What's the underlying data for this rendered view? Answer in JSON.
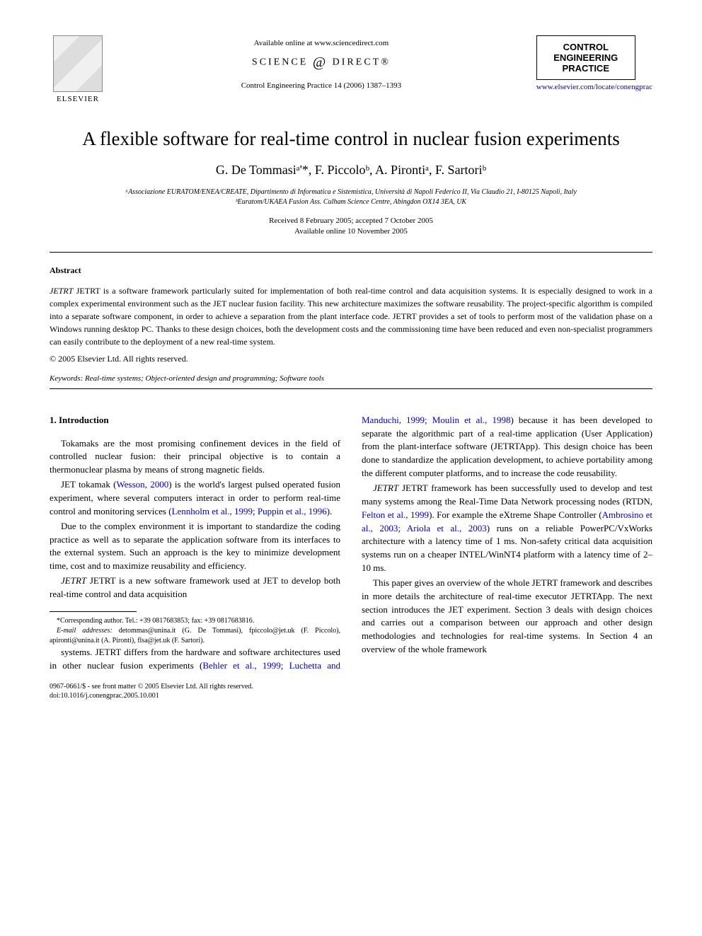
{
  "header": {
    "available_text": "Available online at www.sciencedirect.com",
    "sciencedirect": "SCIENCE",
    "sciencedirect2": "DIRECT",
    "elsevier": "ELSEVIER",
    "journal_ref": "Control Engineering Practice 14 (2006) 1387–1393",
    "journal_box_line1": "CONTROL ENGINEERING",
    "journal_box_line2": "PRACTICE",
    "journal_link": "www.elsevier.com/locate/conengprac"
  },
  "title": "A flexible software for real-time control in nuclear fusion experiments",
  "authors": "G. De Tommasiᵃ'*, F. Piccoloᵇ, A. Pirontiᵃ, F. Sartoriᵇ",
  "affiliations": {
    "a": "ᵃAssociazione EURATOM/ENEA/CREATE, Dipartimento di Informatica e Sistemistica, Università di Napoli Federico II, Via Claudio 21, I-80125 Napoli, Italy",
    "b": "ᵇEuratom/UKAEA Fusion Ass. Culham Science Centre, Abingdon OX14 3EA, UK"
  },
  "dates": {
    "received": "Received 8 February 2005; accepted 7 October 2005",
    "online": "Available online 10 November 2005"
  },
  "abstract": {
    "heading": "Abstract",
    "text": "JETRT is a software framework particularly suited for implementation of both real-time control and data acquisition systems. It is especially designed to work in a complex experimental environment such as the JET nuclear fusion facility. This new architecture maximizes the software reusability. The project-specific algorithm is compiled into a separate software component, in order to achieve a separation from the plant interface code. JETRT provides a set of tools to perform most of the validation phase on a Windows running desktop PC. Thanks to these design choices, both the development costs and the commissioning time have been reduced and even non-specialist programmers can easily contribute to the deployment of a new real-time system.",
    "copyright": "© 2005 Elsevier Ltd. All rights reserved."
  },
  "keywords": "Keywords: Real-time systems; Object-oriented design and programming; Software tools",
  "section1": {
    "heading": "1. Introduction",
    "p1": "Tokamaks are the most promising confinement devices in the field of controlled nuclear fusion: their principal objective is to contain a thermonuclear plasma by means of strong magnetic fields.",
    "p2a": "JET tokamak (",
    "p2_ref1": "Wesson, 2000",
    "p2b": ") is the world's largest pulsed operated fusion experiment, where several computers interact in order to perform real-time control and monitoring services (",
    "p2_ref2": "Lennholm et al., 1999; Puppin et al., 1996",
    "p2c": ").",
    "p3": "Due to the complex environment it is important to standardize the coding practice as well as to separate the application software from its interfaces to the external system. Such an approach is the key to minimize development time, cost and to maximize reusability and efficiency.",
    "p4": "JETRT is a new software framework used at JET to develop both real-time control and data acquisition",
    "p5a": "systems. JETRT differs from the hardware and software architectures used in other nuclear fusion experiments (",
    "p5_ref1": "Behler et al., 1999; Luchetta and Manduchi, 1999; Moulin et al., 1998",
    "p5b": ") because it has been developed to separate the algorithmic part of a real-time application (User Application) from the plant-interface software (JETRTApp). This design choice has been done to standardize the application development, to achieve portability among the different computer platforms, and to increase the code reusability.",
    "p6a": "JETRT framework has been successfully used to develop and test many systems among the Real-Time Data Network processing nodes (RTDN, ",
    "p6_ref1": "Felton et al., 1999",
    "p6b": "). For example the eXtreme Shape Controller (",
    "p6_ref2": "Ambrosino et al., 2003; Ariola et al., 2003",
    "p6c": ") runs on a reliable PowerPC/VxWorks architecture with a latency time of 1 ms. Non-safety critical data acquisition systems run on a cheaper INTEL/WinNT4 platform with a latency time of 2–10 ms.",
    "p7": "This paper gives an overview of the whole JETRT framework and describes in more details the architecture of real-time executor JETRTApp. The next section introduces the JET experiment. Section 3 deals with design choices and carries out a comparison between our approach and other design methodologies and technologies for real-time systems. In Section 4 an overview of the whole framework"
  },
  "footnotes": {
    "corr": "*Corresponding author. Tel.: +39 0817683853; fax: +39 0817683816.",
    "emails_label": "E-mail addresses:",
    "emails": " detommas@unina.it (G. De Tommasi), fpiccolo@jet.uk (F. Piccolo), apironti@unina.it (A. Pironti), flsa@jet.uk (F. Sartori)."
  },
  "footer": {
    "line1": "0967-0661/$ - see front matter © 2005 Elsevier Ltd. All rights reserved.",
    "line2": "doi:10.1016/j.conengprac.2005.10.001"
  }
}
